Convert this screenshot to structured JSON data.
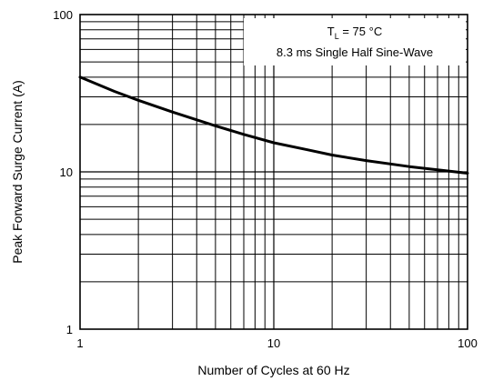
{
  "chart_data": {
    "type": "line",
    "xlabel": "Number of Cycles at 60 Hz",
    "ylabel": "Peak Forward Surge Current (A)",
    "x_scale": "log",
    "y_scale": "log",
    "xlim": [
      1,
      100
    ],
    "ylim": [
      1,
      100
    ],
    "x_ticks": [
      "1",
      "10",
      "100"
    ],
    "y_ticks": [
      "1",
      "10",
      "100"
    ],
    "grid": true,
    "annotation": {
      "line1_prefix": "T",
      "line1_sub": "L",
      "line1_suffix": " = 75 °C",
      "line2": "8.3 ms Single Half Sine-Wave",
      "position": "top-right"
    },
    "series": [
      {
        "x": [
          1,
          1.5,
          2,
          3,
          5,
          7,
          10,
          15,
          20,
          30,
          50,
          70,
          100
        ],
        "y": [
          40,
          32.5,
          28.5,
          24,
          19.6,
          17.3,
          15.3,
          13.8,
          12.8,
          11.8,
          10.8,
          10.3,
          9.8
        ]
      }
    ]
  }
}
